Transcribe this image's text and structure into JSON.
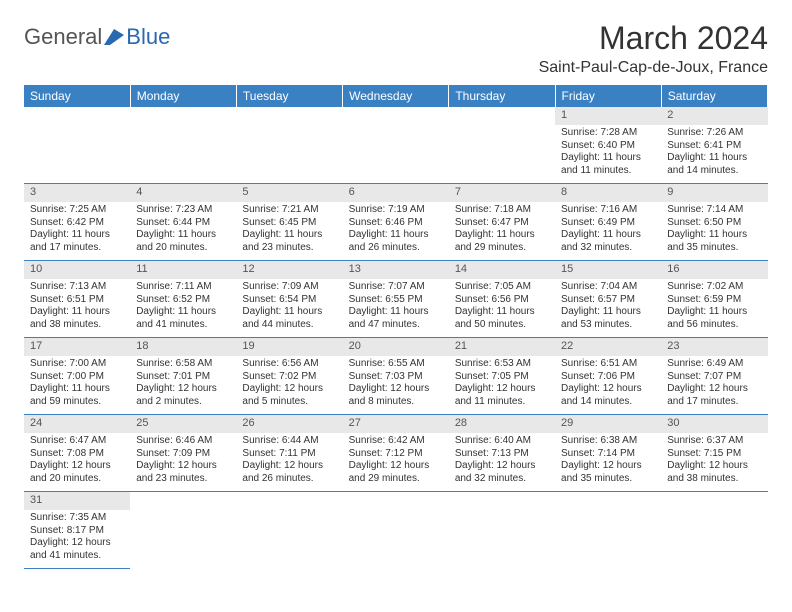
{
  "logo": {
    "part1": "General",
    "part2": "Blue"
  },
  "title": "March 2024",
  "location": "Saint-Paul-Cap-de-Joux, France",
  "colors": {
    "header_bg": "#3a81c4",
    "header_text": "#ffffff",
    "daynum_bg": "#e8e8e8",
    "row_border": "#3a81c4",
    "logo_blue": "#2869b0"
  },
  "day_headers": [
    "Sunday",
    "Monday",
    "Tuesday",
    "Wednesday",
    "Thursday",
    "Friday",
    "Saturday"
  ],
  "weeks": [
    [
      null,
      null,
      null,
      null,
      null,
      {
        "n": "1",
        "sr": "Sunrise: 7:28 AM",
        "ss": "Sunset: 6:40 PM",
        "d1": "Daylight: 11 hours",
        "d2": "and 11 minutes."
      },
      {
        "n": "2",
        "sr": "Sunrise: 7:26 AM",
        "ss": "Sunset: 6:41 PM",
        "d1": "Daylight: 11 hours",
        "d2": "and 14 minutes."
      }
    ],
    [
      {
        "n": "3",
        "sr": "Sunrise: 7:25 AM",
        "ss": "Sunset: 6:42 PM",
        "d1": "Daylight: 11 hours",
        "d2": "and 17 minutes."
      },
      {
        "n": "4",
        "sr": "Sunrise: 7:23 AM",
        "ss": "Sunset: 6:44 PM",
        "d1": "Daylight: 11 hours",
        "d2": "and 20 minutes."
      },
      {
        "n": "5",
        "sr": "Sunrise: 7:21 AM",
        "ss": "Sunset: 6:45 PM",
        "d1": "Daylight: 11 hours",
        "d2": "and 23 minutes."
      },
      {
        "n": "6",
        "sr": "Sunrise: 7:19 AM",
        "ss": "Sunset: 6:46 PM",
        "d1": "Daylight: 11 hours",
        "d2": "and 26 minutes."
      },
      {
        "n": "7",
        "sr": "Sunrise: 7:18 AM",
        "ss": "Sunset: 6:47 PM",
        "d1": "Daylight: 11 hours",
        "d2": "and 29 minutes."
      },
      {
        "n": "8",
        "sr": "Sunrise: 7:16 AM",
        "ss": "Sunset: 6:49 PM",
        "d1": "Daylight: 11 hours",
        "d2": "and 32 minutes."
      },
      {
        "n": "9",
        "sr": "Sunrise: 7:14 AM",
        "ss": "Sunset: 6:50 PM",
        "d1": "Daylight: 11 hours",
        "d2": "and 35 minutes."
      }
    ],
    [
      {
        "n": "10",
        "sr": "Sunrise: 7:13 AM",
        "ss": "Sunset: 6:51 PM",
        "d1": "Daylight: 11 hours",
        "d2": "and 38 minutes."
      },
      {
        "n": "11",
        "sr": "Sunrise: 7:11 AM",
        "ss": "Sunset: 6:52 PM",
        "d1": "Daylight: 11 hours",
        "d2": "and 41 minutes."
      },
      {
        "n": "12",
        "sr": "Sunrise: 7:09 AM",
        "ss": "Sunset: 6:54 PM",
        "d1": "Daylight: 11 hours",
        "d2": "and 44 minutes."
      },
      {
        "n": "13",
        "sr": "Sunrise: 7:07 AM",
        "ss": "Sunset: 6:55 PM",
        "d1": "Daylight: 11 hours",
        "d2": "and 47 minutes."
      },
      {
        "n": "14",
        "sr": "Sunrise: 7:05 AM",
        "ss": "Sunset: 6:56 PM",
        "d1": "Daylight: 11 hours",
        "d2": "and 50 minutes."
      },
      {
        "n": "15",
        "sr": "Sunrise: 7:04 AM",
        "ss": "Sunset: 6:57 PM",
        "d1": "Daylight: 11 hours",
        "d2": "and 53 minutes."
      },
      {
        "n": "16",
        "sr": "Sunrise: 7:02 AM",
        "ss": "Sunset: 6:59 PM",
        "d1": "Daylight: 11 hours",
        "d2": "and 56 minutes."
      }
    ],
    [
      {
        "n": "17",
        "sr": "Sunrise: 7:00 AM",
        "ss": "Sunset: 7:00 PM",
        "d1": "Daylight: 11 hours",
        "d2": "and 59 minutes."
      },
      {
        "n": "18",
        "sr": "Sunrise: 6:58 AM",
        "ss": "Sunset: 7:01 PM",
        "d1": "Daylight: 12 hours",
        "d2": "and 2 minutes."
      },
      {
        "n": "19",
        "sr": "Sunrise: 6:56 AM",
        "ss": "Sunset: 7:02 PM",
        "d1": "Daylight: 12 hours",
        "d2": "and 5 minutes."
      },
      {
        "n": "20",
        "sr": "Sunrise: 6:55 AM",
        "ss": "Sunset: 7:03 PM",
        "d1": "Daylight: 12 hours",
        "d2": "and 8 minutes."
      },
      {
        "n": "21",
        "sr": "Sunrise: 6:53 AM",
        "ss": "Sunset: 7:05 PM",
        "d1": "Daylight: 12 hours",
        "d2": "and 11 minutes."
      },
      {
        "n": "22",
        "sr": "Sunrise: 6:51 AM",
        "ss": "Sunset: 7:06 PM",
        "d1": "Daylight: 12 hours",
        "d2": "and 14 minutes."
      },
      {
        "n": "23",
        "sr": "Sunrise: 6:49 AM",
        "ss": "Sunset: 7:07 PM",
        "d1": "Daylight: 12 hours",
        "d2": "and 17 minutes."
      }
    ],
    [
      {
        "n": "24",
        "sr": "Sunrise: 6:47 AM",
        "ss": "Sunset: 7:08 PM",
        "d1": "Daylight: 12 hours",
        "d2": "and 20 minutes."
      },
      {
        "n": "25",
        "sr": "Sunrise: 6:46 AM",
        "ss": "Sunset: 7:09 PM",
        "d1": "Daylight: 12 hours",
        "d2": "and 23 minutes."
      },
      {
        "n": "26",
        "sr": "Sunrise: 6:44 AM",
        "ss": "Sunset: 7:11 PM",
        "d1": "Daylight: 12 hours",
        "d2": "and 26 minutes."
      },
      {
        "n": "27",
        "sr": "Sunrise: 6:42 AM",
        "ss": "Sunset: 7:12 PM",
        "d1": "Daylight: 12 hours",
        "d2": "and 29 minutes."
      },
      {
        "n": "28",
        "sr": "Sunrise: 6:40 AM",
        "ss": "Sunset: 7:13 PM",
        "d1": "Daylight: 12 hours",
        "d2": "and 32 minutes."
      },
      {
        "n": "29",
        "sr": "Sunrise: 6:38 AM",
        "ss": "Sunset: 7:14 PM",
        "d1": "Daylight: 12 hours",
        "d2": "and 35 minutes."
      },
      {
        "n": "30",
        "sr": "Sunrise: 6:37 AM",
        "ss": "Sunset: 7:15 PM",
        "d1": "Daylight: 12 hours",
        "d2": "and 38 minutes."
      }
    ],
    [
      {
        "n": "31",
        "sr": "Sunrise: 7:35 AM",
        "ss": "Sunset: 8:17 PM",
        "d1": "Daylight: 12 hours",
        "d2": "and 41 minutes."
      },
      null,
      null,
      null,
      null,
      null,
      null
    ]
  ]
}
